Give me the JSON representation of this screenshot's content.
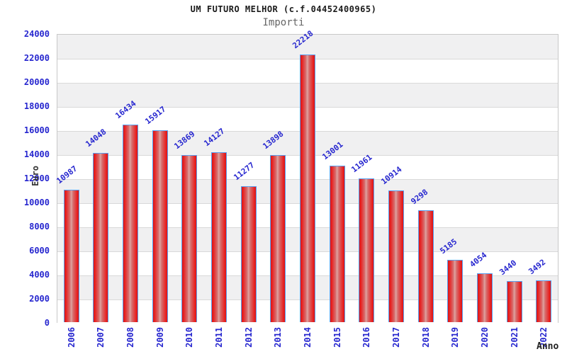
{
  "chart_data": {
    "type": "bar",
    "title": "UM FUTURO MELHOR (c.f.04452400965)",
    "subtitle": "Importi",
    "ylabel": "Euro",
    "xlabel": "Anno",
    "categories": [
      "2006",
      "2007",
      "2008",
      "2009",
      "2010",
      "2011",
      "2012",
      "2013",
      "2014",
      "2015",
      "2016",
      "2017",
      "2018",
      "2019",
      "2020",
      "2021",
      "2022"
    ],
    "values": [
      10987,
      14048,
      16434,
      15917,
      13869,
      14127,
      11277,
      13898,
      22218,
      13001,
      11961,
      10914,
      9298,
      5185,
      4054,
      3440,
      3492
    ],
    "ylim": [
      0,
      24000
    ],
    "ytick_step": 2000,
    "grid": "horizontal",
    "legend": "none",
    "colors": {
      "bar_fill_edge": "#dc1414",
      "bar_fill_center": "#dfa3a0",
      "bar_border": "#58a0f0",
      "axis_text": "#2626cf",
      "band_gray": "#f0f0f1",
      "gridline": "#d9d9d9",
      "plot_border": "#c8c8c8",
      "title_text": "#1a1a1a",
      "subtitle_text": "#666666",
      "axis_title_text": "#333333"
    }
  }
}
